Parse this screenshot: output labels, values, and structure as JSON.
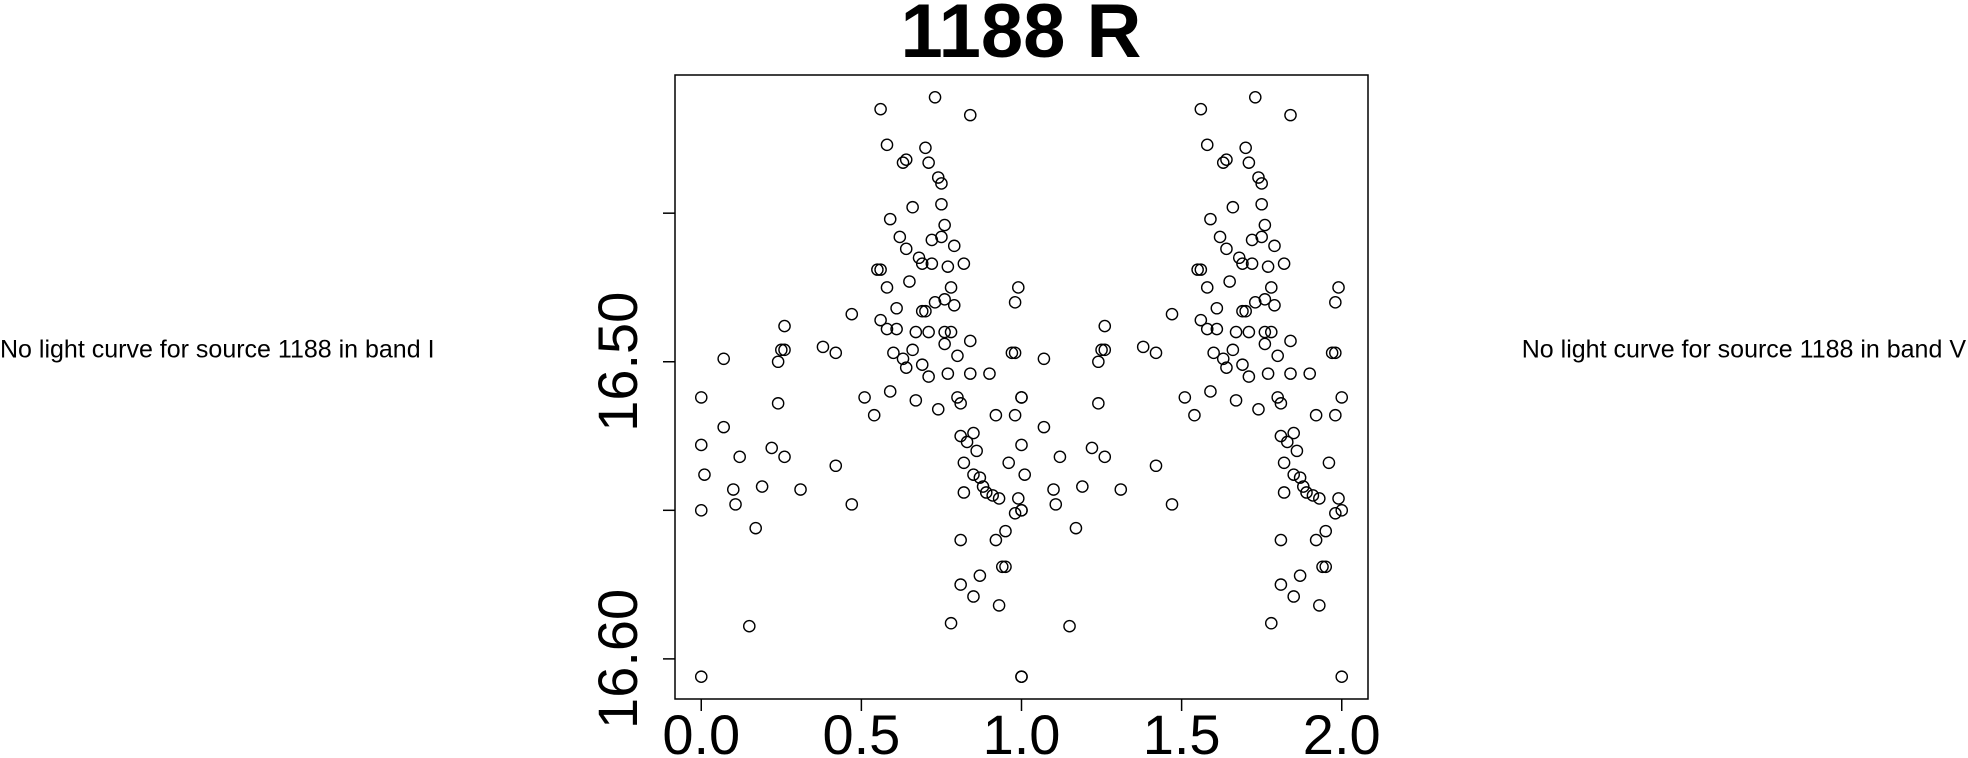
{
  "chart_data": {
    "type": "scatter",
    "title": "1188 R",
    "annotations": [
      "No light curve for source 1188 in band I",
      "No light curve for source 1188 in band V"
    ],
    "color": "#000000",
    "xlim": [
      -0.082,
      2.082
    ],
    "ylim": [
      16.6135,
      16.4035
    ],
    "xticks": [
      {
        "value": 0,
        "label": "0.0"
      },
      {
        "value": 0.5,
        "label": "0.5"
      },
      {
        "value": 1,
        "label": "1.0"
      },
      {
        "value": 1.5,
        "label": "1.5"
      },
      {
        "value": 2,
        "label": "2.0"
      }
    ],
    "yticks": [
      {
        "value": 16.45,
        "label": null
      },
      {
        "value": 16.5,
        "label": "16.50"
      },
      {
        "value": 16.55,
        "label": null
      },
      {
        "value": 16.6,
        "label": "16.60"
      }
    ],
    "x": [
      0.0,
      0.0,
      0.01,
      0.0,
      0.0,
      0.07,
      0.07,
      0.1,
      0.107,
      0.12,
      0.17,
      0.15,
      0.19,
      0.22,
      0.24,
      0.24,
      0.25,
      0.26,
      0.26,
      0.26,
      0.31,
      0.38,
      0.42,
      0.42,
      0.47,
      0.47,
      0.51,
      0.54,
      0.55,
      0.56,
      0.56,
      0.56,
      0.58,
      0.58,
      0.58,
      0.59,
      0.59,
      0.6,
      0.61,
      0.61,
      0.62,
      0.63,
      0.63,
      0.64,
      0.64,
      0.64,
      0.65,
      0.66,
      0.66,
      0.67,
      0.67,
      0.68,
      0.69,
      0.69,
      0.69,
      0.7,
      0.7,
      0.71,
      0.71,
      0.71,
      0.72,
      0.72,
      0.73,
      0.73,
      0.74,
      0.74,
      0.75,
      0.75,
      0.75,
      0.76,
      0.76,
      0.76,
      0.76,
      0.77,
      0.77,
      0.78,
      0.78,
      0.78,
      0.79,
      0.79,
      0.8,
      0.8,
      0.81,
      0.81,
      0.81,
      0.81,
      0.82,
      0.82,
      0.82,
      0.83,
      0.84,
      0.84,
      0.84,
      0.85,
      0.85,
      0.85,
      0.86,
      0.87,
      0.87,
      0.88,
      0.89,
      0.9,
      0.91,
      0.92,
      0.92,
      0.93,
      0.93,
      0.94,
      0.95,
      0.95,
      0.96,
      0.97,
      0.98,
      0.98,
      0.98,
      0.98,
      0.99,
      0.99,
      1.0,
      1.0,
      1.0,
      1.0,
      1.0,
      1.01,
      1.0,
      1.0,
      1.07,
      1.07,
      1.1,
      1.107,
      1.12,
      1.17,
      1.15,
      1.19,
      1.22,
      1.24,
      1.24,
      1.25,
      1.26,
      1.26,
      1.26,
      1.31,
      1.38,
      1.42,
      1.42,
      1.47,
      1.47,
      1.51,
      1.54,
      1.55,
      1.56,
      1.56,
      1.56,
      1.58,
      1.58,
      1.58,
      1.59,
      1.59,
      1.6,
      1.61,
      1.61,
      1.62,
      1.63,
      1.63,
      1.64,
      1.64,
      1.64,
      1.65,
      1.66,
      1.66,
      1.67,
      1.67,
      1.68,
      1.69,
      1.69,
      1.69,
      1.7,
      1.7,
      1.71,
      1.71,
      1.71,
      1.72,
      1.72,
      1.73,
      1.73,
      1.74,
      1.74,
      1.75,
      1.75,
      1.75,
      1.76,
      1.76,
      1.76,
      1.76,
      1.77,
      1.77,
      1.78,
      1.78,
      1.78,
      1.79,
      1.79,
      1.8,
      1.8,
      1.81,
      1.81,
      1.81,
      1.81,
      1.82,
      1.82,
      1.82,
      1.83,
      1.84,
      1.84,
      1.84,
      1.85,
      1.85,
      1.85,
      1.86,
      1.87,
      1.87,
      1.88,
      1.89,
      1.9,
      1.91,
      1.92,
      1.92,
      1.93,
      1.93,
      1.94,
      1.95,
      1.95,
      1.96,
      1.97,
      1.98,
      1.98,
      1.98,
      1.98,
      1.99,
      1.99,
      2.0,
      2.0,
      2.0
    ],
    "y": [
      16.512,
      16.528,
      16.538,
      16.55,
      16.606,
      16.499,
      16.522,
      16.543,
      16.548,
      16.532,
      16.556,
      16.589,
      16.542,
      16.529,
      16.514,
      16.5,
      16.496,
      16.488,
      16.496,
      16.532,
      16.543,
      16.495,
      16.497,
      16.535,
      16.548,
      16.484,
      16.512,
      16.518,
      16.469,
      16.469,
      16.415,
      16.486,
      16.427,
      16.475,
      16.489,
      16.51,
      16.452,
      16.497,
      16.482,
      16.489,
      16.458,
      16.433,
      16.499,
      16.462,
      16.502,
      16.432,
      16.473,
      16.496,
      16.448,
      16.49,
      16.513,
      16.465,
      16.467,
      16.483,
      16.501,
      16.428,
      16.483,
      16.433,
      16.49,
      16.505,
      16.467,
      16.459,
      16.48,
      16.411,
      16.516,
      16.438,
      16.44,
      16.447,
      16.458,
      16.479,
      16.49,
      16.454,
      16.494,
      16.468,
      16.504,
      16.49,
      16.475,
      16.588,
      16.481,
      16.461,
      16.512,
      16.498,
      16.514,
      16.525,
      16.56,
      16.575,
      16.544,
      16.467,
      16.534,
      16.527,
      16.493,
      16.504,
      16.417,
      16.538,
      16.579,
      16.524,
      16.53,
      16.572,
      16.539,
      16.542,
      16.544,
      16.504,
      16.545,
      16.518,
      16.56,
      16.582,
      16.546,
      16.569,
      16.557,
      16.569,
      16.534,
      16.497,
      16.48,
      16.518,
      16.497,
      16.551,
      16.475,
      16.546,
      16.512,
      16.55,
      16.606,
      16.512,
      16.528,
      16.538,
      16.55,
      16.606,
      16.499,
      16.522,
      16.543,
      16.548,
      16.532,
      16.556,
      16.589,
      16.542,
      16.529,
      16.514,
      16.5,
      16.496,
      16.488,
      16.496,
      16.532,
      16.543,
      16.495,
      16.497,
      16.535,
      16.548,
      16.484,
      16.512,
      16.518,
      16.469,
      16.469,
      16.415,
      16.486,
      16.427,
      16.475,
      16.489,
      16.51,
      16.452,
      16.497,
      16.482,
      16.489,
      16.458,
      16.433,
      16.499,
      16.462,
      16.502,
      16.432,
      16.473,
      16.496,
      16.448,
      16.49,
      16.513,
      16.465,
      16.467,
      16.483,
      16.501,
      16.428,
      16.483,
      16.433,
      16.49,
      16.505,
      16.467,
      16.459,
      16.48,
      16.411,
      16.516,
      16.438,
      16.44,
      16.447,
      16.458,
      16.479,
      16.49,
      16.454,
      16.494,
      16.468,
      16.504,
      16.49,
      16.475,
      16.588,
      16.481,
      16.461,
      16.512,
      16.498,
      16.514,
      16.525,
      16.56,
      16.575,
      16.544,
      16.467,
      16.534,
      16.527,
      16.493,
      16.504,
      16.417,
      16.538,
      16.579,
      16.524,
      16.53,
      16.572,
      16.539,
      16.542,
      16.544,
      16.504,
      16.545,
      16.518,
      16.56,
      16.582,
      16.546,
      16.569,
      16.557,
      16.569,
      16.534,
      16.497,
      16.48,
      16.518,
      16.497,
      16.551,
      16.475,
      16.546,
      16.512,
      16.55,
      16.606
    ]
  }
}
